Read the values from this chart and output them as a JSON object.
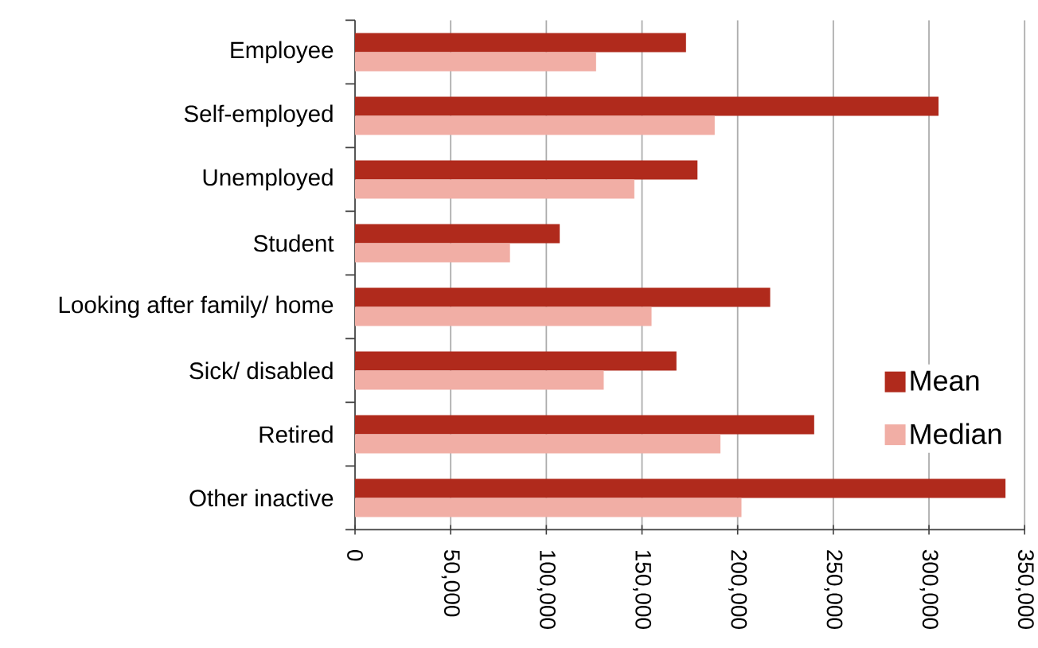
{
  "chart_data": {
    "type": "bar",
    "orientation": "horizontal",
    "categories": [
      "Employee",
      "Self-employed",
      "Unemployed",
      "Student",
      "Looking after family/ home",
      "Sick/ disabled",
      "Retired",
      "Other inactive"
    ],
    "series": [
      {
        "name": "Mean",
        "color": "#b02a1c",
        "values": [
          173000,
          305000,
          179000,
          107000,
          217000,
          168000,
          240000,
          340000
        ]
      },
      {
        "name": "Median",
        "color": "#f1aea5",
        "values": [
          126000,
          188000,
          146000,
          81000,
          155000,
          130000,
          191000,
          202000
        ]
      }
    ],
    "xlim": [
      0,
      350000
    ],
    "xticks": [
      0,
      {
        "value": 50000,
        "label": "50,000"
      },
      {
        "value": 100000,
        "label": "100,000"
      },
      {
        "value": 150000,
        "label": "150,000"
      },
      {
        "value": 200000,
        "label": "200,000"
      },
      {
        "value": 250000,
        "label": "250,000"
      },
      {
        "value": 300000,
        "label": "300,000"
      },
      {
        "value": 350000,
        "label": "350,000"
      }
    ],
    "grid": "x",
    "legend": "right"
  }
}
